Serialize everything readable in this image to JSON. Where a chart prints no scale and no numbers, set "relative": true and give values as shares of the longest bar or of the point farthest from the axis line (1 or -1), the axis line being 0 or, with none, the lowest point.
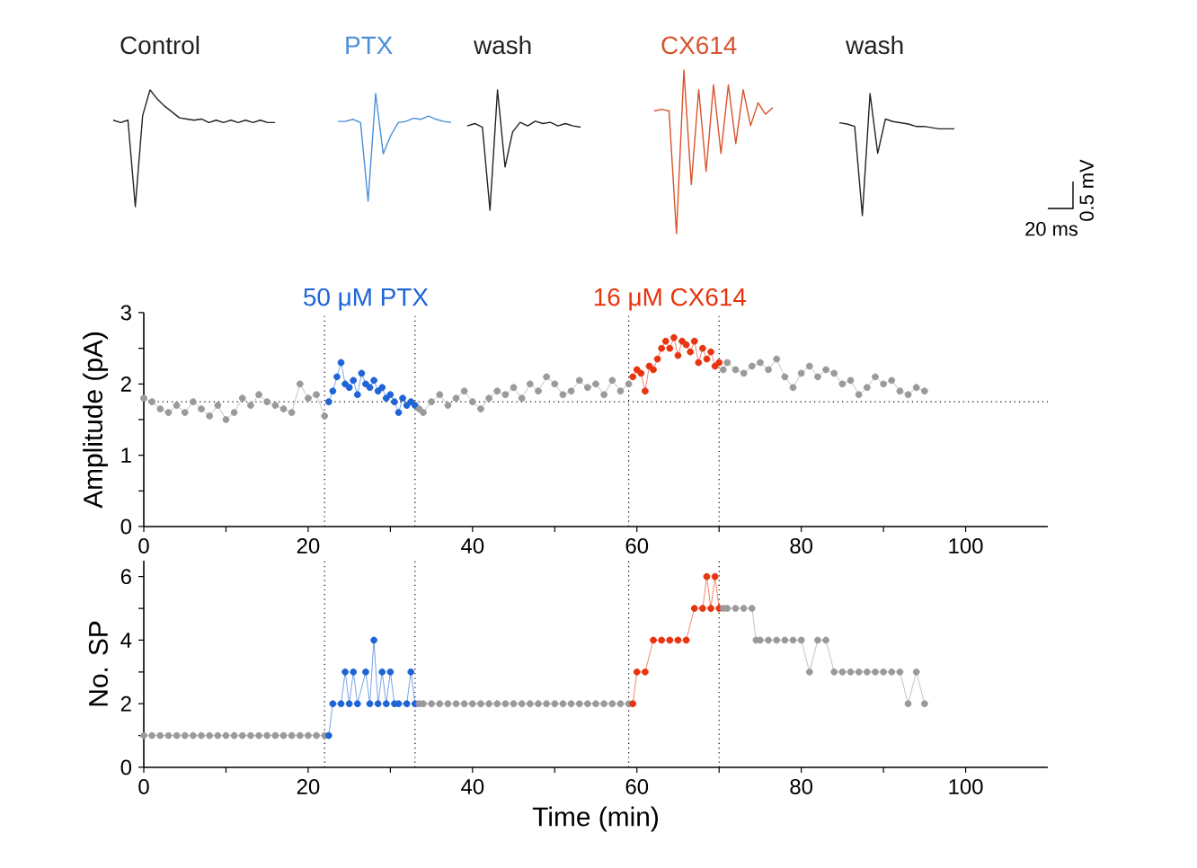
{
  "chart_data": [
    {
      "type": "line",
      "relative": true,
      "categories": [
        null,
        null,
        null,
        null,
        null,
        null,
        null,
        null,
        null,
        null,
        null,
        null,
        null,
        null,
        null,
        null,
        null,
        null,
        null,
        null,
        null,
        null,
        null
      ],
      "series": [
        {
          "name": "Control",
          "color": "#222222",
          "values": [
            0.74,
            0.72,
            0.74,
            0,
            0.78,
            1,
            0.92,
            0.86,
            0.81,
            0.76,
            0.75,
            0.74,
            0.75,
            0.72,
            0.74,
            0.72,
            0.74,
            0.72,
            0.74,
            0.72,
            0.74,
            0.72,
            0.72
          ]
        }
      ]
    },
    {
      "type": "line",
      "relative": true,
      "categories": [
        null,
        null,
        null,
        null,
        null,
        null,
        null,
        null,
        null,
        null,
        null,
        null,
        null,
        null,
        null,
        null
      ],
      "series": [
        {
          "name": "PTX",
          "color": "#4a8fd9",
          "values": [
            0.74,
            0.74,
            0.76,
            0.73,
            0,
            1,
            0.44,
            0.61,
            0.73,
            0.74,
            0.77,
            0.76,
            0.79,
            0.76,
            0.74,
            0.73
          ]
        }
      ]
    },
    {
      "type": "line",
      "relative": true,
      "categories": [
        null,
        null,
        null,
        null,
        null,
        null,
        null,
        null,
        null,
        null,
        null,
        null,
        null,
        null,
        null,
        null
      ],
      "series": [
        {
          "name": "wash",
          "color": "#222222",
          "values": [
            0.7,
            0.72,
            0.69,
            0,
            1,
            0.36,
            0.65,
            0.73,
            0.7,
            0.74,
            0.72,
            0.73,
            0.7,
            0.72,
            0.7,
            0.69
          ]
        }
      ]
    },
    {
      "type": "line",
      "relative": true,
      "categories": [
        null,
        null,
        null,
        null,
        null,
        null,
        null,
        null,
        null,
        null,
        null,
        null,
        null,
        null,
        null,
        null,
        null
      ],
      "series": [
        {
          "name": "CX614",
          "color": "#d9532c",
          "values": [
            0.75,
            0.76,
            0.75,
            0,
            1,
            0.3,
            0.88,
            0.38,
            0.91,
            0.49,
            0.91,
            0.55,
            0.88,
            0.66,
            0.8,
            0.73,
            0.77
          ]
        }
      ]
    },
    {
      "type": "line",
      "relative": true,
      "categories": [
        null,
        null,
        null,
        null,
        null,
        null,
        null,
        null,
        null,
        null,
        null,
        null,
        null,
        null,
        null,
        null
      ],
      "annotations": [
        "20 ms",
        "0.5 mV"
      ],
      "series": [
        {
          "name": "wash",
          "color": "#222222",
          "values": [
            0.76,
            0.75,
            0.73,
            0,
            1,
            0.51,
            0.79,
            0.77,
            0.76,
            0.75,
            0.73,
            0.73,
            0.72,
            0.71,
            0.71,
            0.71
          ]
        }
      ]
    },
    {
      "type": "line",
      "marker": "circle",
      "line_style": "solid",
      "ylabel": "Amplitude (pA)",
      "xlim": [
        0,
        110
      ],
      "ylim": [
        0,
        3
      ],
      "xticks": [
        0,
        {
          "value": 10,
          "label": null
        },
        20,
        {
          "value": 30,
          "label": null
        },
        40,
        {
          "value": 50,
          "label": null
        },
        60,
        {
          "value": 70,
          "label": null
        },
        80,
        {
          "value": 90,
          "label": null
        },
        100
      ],
      "yticks": [
        0,
        {
          "value": 0.5,
          "label": null
        },
        1,
        {
          "value": 1.5,
          "label": null
        },
        2,
        {
          "value": 2.5,
          "label": null
        },
        3
      ],
      "ref_lines": [
        {
          "axis": "y",
          "value": 1.75
        },
        {
          "axis": "x",
          "value": 22,
          "label": "50 μM PTX"
        },
        {
          "axis": "x",
          "value": 33
        },
        {
          "axis": "x",
          "value": 59,
          "label": "16 μM CX614"
        },
        {
          "axis": "x",
          "value": 70
        }
      ],
      "series": [
        {
          "color": "#9a9a9a",
          "x": [
            0,
            1,
            2,
            3,
            4,
            5,
            6,
            7,
            8,
            9,
            10,
            11,
            12,
            13,
            14,
            15,
            16,
            17,
            18,
            19,
            20,
            21,
            22
          ],
          "values": [
            1.8,
            1.75,
            1.65,
            1.6,
            1.7,
            1.6,
            1.75,
            1.65,
            1.55,
            1.7,
            1.5,
            1.6,
            1.8,
            1.7,
            1.85,
            1.75,
            1.7,
            1.65,
            1.6,
            2.0,
            1.8,
            1.85,
            1.55
          ]
        },
        {
          "color": "#1f64d6",
          "x": [
            22.5,
            23,
            23.5,
            24,
            24.5,
            25,
            25.5,
            26,
            26.5,
            27,
            27.5,
            28,
            28.5,
            29,
            29.5,
            30,
            30.5,
            31,
            31.5,
            32,
            32.5,
            33
          ],
          "values": [
            1.75,
            1.9,
            2.1,
            2.3,
            2.0,
            1.95,
            2.05,
            1.85,
            2.15,
            2.0,
            1.95,
            2.05,
            1.9,
            1.95,
            1.8,
            1.85,
            1.75,
            1.6,
            1.8,
            1.7,
            1.75,
            1.7
          ]
        },
        {
          "color": "#9a9a9a",
          "x": [
            33.5,
            34,
            35,
            36,
            37,
            38,
            39,
            40,
            41,
            42,
            43,
            44,
            45,
            46,
            47,
            48,
            49,
            50,
            51,
            52,
            53,
            54,
            55,
            56,
            57,
            58,
            59
          ],
          "values": [
            1.65,
            1.6,
            1.75,
            1.85,
            1.7,
            1.8,
            1.9,
            1.75,
            1.65,
            1.8,
            1.9,
            1.85,
            1.95,
            1.8,
            2.0,
            1.9,
            2.1,
            2.0,
            1.85,
            1.9,
            2.05,
            1.95,
            2.0,
            1.85,
            2.05,
            1.9,
            2.0
          ]
        },
        {
          "color": "#e8340f",
          "x": [
            59.5,
            60,
            60.5,
            61,
            61.5,
            62,
            62.5,
            63,
            63.5,
            64,
            64.5,
            65,
            65.5,
            66,
            66.5,
            67,
            67.5,
            68,
            68.5,
            69,
            69.5,
            70
          ],
          "values": [
            2.1,
            2.2,
            2.15,
            1.9,
            2.25,
            2.2,
            2.35,
            2.5,
            2.6,
            2.5,
            2.65,
            2.4,
            2.6,
            2.55,
            2.45,
            2.6,
            2.3,
            2.5,
            2.35,
            2.45,
            2.25,
            2.3
          ]
        },
        {
          "color": "#9a9a9a",
          "x": [
            70.5,
            71,
            72,
            73,
            74,
            75,
            76,
            77,
            78,
            79,
            80,
            81,
            82,
            83,
            84,
            85,
            86,
            87,
            88,
            89,
            90,
            91,
            92,
            93,
            94,
            95
          ],
          "values": [
            2.2,
            2.3,
            2.2,
            2.15,
            2.25,
            2.3,
            2.2,
            2.35,
            2.1,
            1.95,
            2.15,
            2.25,
            2.1,
            2.2,
            2.15,
            2.0,
            2.05,
            1.85,
            1.95,
            2.1,
            2.0,
            2.05,
            1.9,
            1.85,
            1.95,
            1.9
          ]
        }
      ]
    },
    {
      "type": "line",
      "marker": "circle",
      "line_style": "solid",
      "xlabel": "Time (min)",
      "ylabel": "No. SP",
      "xlim": [
        0,
        110
      ],
      "ylim": [
        0,
        6.5
      ],
      "xticks": [
        0,
        {
          "value": 10,
          "label": null
        },
        20,
        {
          "value": 30,
          "label": null
        },
        40,
        {
          "value": 50,
          "label": null
        },
        60,
        {
          "value": 70,
          "label": null
        },
        80,
        {
          "value": 90,
          "label": null
        },
        100
      ],
      "yticks": [
        0,
        {
          "value": 1,
          "label": null
        },
        2,
        {
          "value": 3,
          "label": null
        },
        4,
        {
          "value": 5,
          "label": null
        },
        6
      ],
      "ref_lines": [
        {
          "axis": "x",
          "value": 22
        },
        {
          "axis": "x",
          "value": 33
        },
        {
          "axis": "x",
          "value": 59
        },
        {
          "axis": "x",
          "value": 70
        }
      ],
      "series": [
        {
          "color": "#9a9a9a",
          "x": [
            0,
            1,
            2,
            3,
            4,
            5,
            6,
            7,
            8,
            9,
            10,
            11,
            12,
            13,
            14,
            15,
            16,
            17,
            18,
            19,
            20,
            21,
            22
          ],
          "values": [
            1,
            1,
            1,
            1,
            1,
            1,
            1,
            1,
            1,
            1,
            1,
            1,
            1,
            1,
            1,
            1,
            1,
            1,
            1,
            1,
            1,
            1,
            1
          ]
        },
        {
          "color": "#1f64d6",
          "x": [
            22.5,
            23,
            24,
            24.5,
            25,
            25.5,
            26,
            27,
            27.5,
            28,
            28.5,
            29,
            29.5,
            30,
            30.5,
            31,
            32,
            32.5,
            33
          ],
          "values": [
            1,
            2,
            2,
            3,
            2,
            3,
            2,
            3,
            2,
            4,
            2,
            3,
            2,
            3,
            2,
            2,
            2,
            3,
            2
          ]
        },
        {
          "color": "#9a9a9a",
          "x": [
            33.5,
            34,
            35,
            36,
            37,
            38,
            39,
            40,
            41,
            42,
            43,
            44,
            45,
            46,
            47,
            48,
            49,
            50,
            51,
            52,
            53,
            54,
            55,
            56,
            57,
            58,
            59
          ],
          "values": [
            2,
            2,
            2,
            2,
            2,
            2,
            2,
            2,
            2,
            2,
            2,
            2,
            2,
            2,
            2,
            2,
            2,
            2,
            2,
            2,
            2,
            2,
            2,
            2,
            2,
            2,
            2
          ]
        },
        {
          "color": "#e8340f",
          "x": [
            59.5,
            60,
            61,
            62,
            63,
            64,
            65,
            66,
            67,
            68,
            68.5,
            69,
            69.5,
            70
          ],
          "values": [
            2,
            3,
            3,
            4,
            4,
            4,
            4,
            4,
            5,
            5,
            6,
            5,
            6,
            5
          ]
        },
        {
          "color": "#9a9a9a",
          "x": [
            70.5,
            71,
            72,
            73,
            74,
            74.5,
            75,
            76,
            77,
            78,
            79,
            80,
            81,
            82,
            83,
            84,
            85,
            86,
            87,
            88,
            89,
            90,
            91,
            92,
            93,
            94,
            95
          ],
          "values": [
            5,
            5,
            5,
            5,
            5,
            4,
            4,
            4,
            4,
            4,
            4,
            4,
            3,
            4,
            4,
            3,
            3,
            3,
            3,
            3,
            3,
            3,
            3,
            3,
            2,
            3,
            2
          ]
        }
      ]
    }
  ]
}
